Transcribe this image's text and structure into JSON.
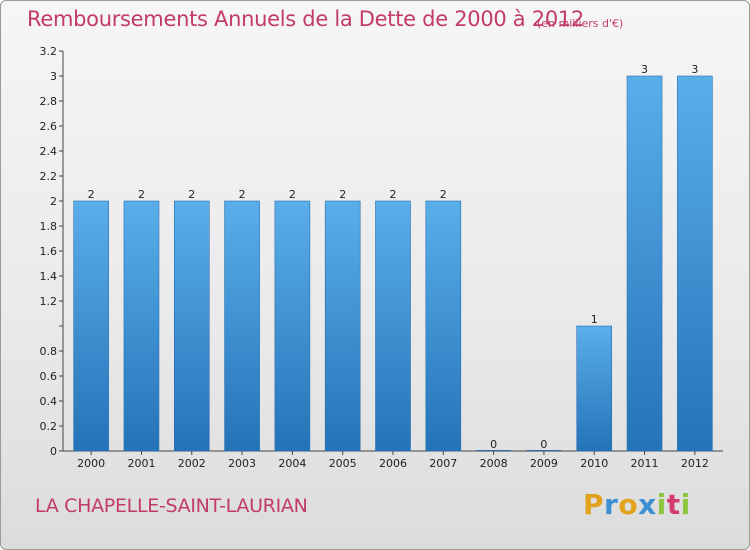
{
  "chart_data": {
    "type": "bar",
    "title": "Remboursements Annuels de la Dette de 2000 à 2012",
    "subtitle": "(en milliers d'€)",
    "categories": [
      "2000",
      "2001",
      "2002",
      "2003",
      "2004",
      "2005",
      "2006",
      "2007",
      "2008",
      "2009",
      "2010",
      "2011",
      "2012"
    ],
    "values": [
      2,
      2,
      2,
      2,
      2,
      2,
      2,
      2,
      0,
      0,
      1,
      3,
      3
    ],
    "data_labels": [
      "2",
      "2",
      "2",
      "2",
      "2",
      "2",
      "2",
      "2",
      "0",
      "0",
      "1",
      "3",
      "3"
    ],
    "ylim": [
      0,
      3.2
    ],
    "yticks": [
      0,
      0.2,
      0.4,
      0.6,
      0.8,
      1,
      1.2,
      1.4,
      1.6,
      1.8,
      2,
      2.2,
      2.4,
      2.6,
      2.8,
      3,
      3.2
    ],
    "ytick_labels": [
      "0",
      "0.2",
      "0.4",
      "0.6",
      "0.8",
      "",
      "1.2",
      "1.4",
      "1.6",
      "1.8",
      "2",
      "2.2",
      "2.4",
      "2.6",
      "2.8",
      "3",
      "3.2"
    ],
    "xlabel": "",
    "ylabel": "",
    "grid": false,
    "bar_color": "#3d8fd6"
  },
  "footer": {
    "commune": "LA CHAPELLE-SAINT-LAURIAN",
    "logo_letters": [
      "P",
      "r",
      "o",
      "x",
      "i",
      "t",
      "i"
    ],
    "logo_colors": [
      "#e2a21c",
      "#3b8fd2",
      "#e2a21c",
      "#3b8fd2",
      "#8cc63f",
      "#d23c6e",
      "#8cc63f"
    ]
  }
}
